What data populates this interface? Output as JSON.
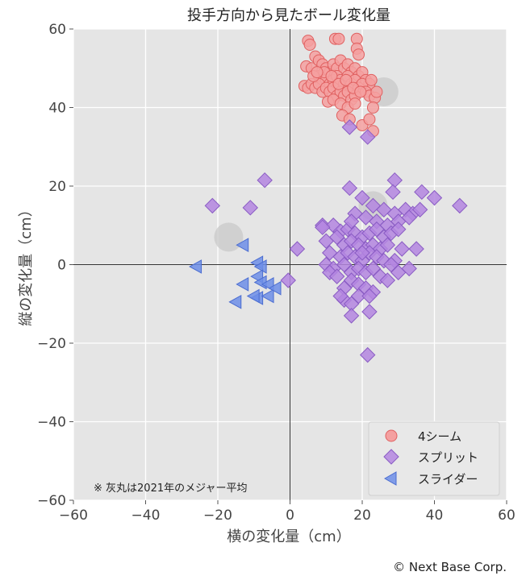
{
  "chart_data": {
    "type": "scatter",
    "title": "投手方向から見たボール変化量",
    "xlabel": "横の変化量（cm）",
    "ylabel": "縦の変化量（cm）",
    "xlim": [
      -60,
      60
    ],
    "ylim": [
      -60,
      60
    ],
    "xticks": [
      -60,
      -40,
      -20,
      0,
      20,
      40,
      60
    ],
    "yticks": [
      -60,
      -40,
      -20,
      0,
      20,
      40,
      60
    ],
    "xtick_labels": [
      "−60",
      "−40",
      "−20",
      "0",
      "20",
      "40",
      "60"
    ],
    "ytick_labels": [
      "−60",
      "−40",
      "−20",
      "0",
      "20",
      "40",
      "60"
    ],
    "grid": true,
    "legend_position": "bottom-right",
    "annotation": "※ 灰丸は2021年のメジャー平均",
    "series": [
      {
        "name": "4シーム",
        "marker": "circle",
        "color": "#f4a0a0",
        "edge_color": "#e06060",
        "points": [
          [
            5,
            57
          ],
          [
            5.5,
            56
          ],
          [
            7,
            53
          ],
          [
            12.5,
            57.5
          ],
          [
            13.5,
            57.5
          ],
          [
            18.5,
            57.5
          ],
          [
            18.5,
            55
          ],
          [
            19,
            53.5
          ],
          [
            4.5,
            50.5
          ],
          [
            6,
            50
          ],
          [
            8,
            52
          ],
          [
            9,
            51
          ],
          [
            10,
            50
          ],
          [
            11,
            49
          ],
          [
            12,
            51
          ],
          [
            13,
            50
          ],
          [
            14,
            52
          ],
          [
            15,
            50
          ],
          [
            16,
            51
          ],
          [
            17,
            49
          ],
          [
            18,
            50
          ],
          [
            19,
            48
          ],
          [
            20,
            49
          ],
          [
            21,
            47
          ],
          [
            22,
            46
          ],
          [
            8,
            48
          ],
          [
            9,
            47
          ],
          [
            10,
            47
          ],
          [
            11,
            46
          ],
          [
            12,
            47
          ],
          [
            13,
            48
          ],
          [
            14,
            47
          ],
          [
            15,
            46
          ],
          [
            16,
            48
          ],
          [
            17,
            46
          ],
          [
            18,
            47
          ],
          [
            19,
            45
          ],
          [
            20,
            46
          ],
          [
            21,
            44
          ],
          [
            22,
            43
          ],
          [
            4,
            45.5
          ],
          [
            5,
            45
          ],
          [
            6,
            46
          ],
          [
            7,
            45
          ],
          [
            8,
            46
          ],
          [
            9,
            44
          ],
          [
            10,
            45
          ],
          [
            11,
            44
          ],
          [
            12,
            45
          ],
          [
            13,
            43
          ],
          [
            14,
            44
          ],
          [
            15,
            43
          ],
          [
            16,
            44
          ],
          [
            17,
            42
          ],
          [
            18,
            43
          ],
          [
            23.5,
            42.5
          ],
          [
            10.5,
            41.5
          ],
          [
            12,
            42
          ],
          [
            14,
            41
          ],
          [
            16,
            40
          ],
          [
            18,
            41
          ],
          [
            23,
            40
          ],
          [
            14.5,
            38
          ],
          [
            16.5,
            37
          ],
          [
            20,
            35.5
          ],
          [
            22,
            37
          ],
          [
            23,
            34
          ],
          [
            9.5,
            49
          ],
          [
            11.5,
            48
          ],
          [
            13.5,
            46
          ],
          [
            15.5,
            47
          ],
          [
            17.5,
            45
          ],
          [
            19.5,
            44
          ],
          [
            6.5,
            48
          ],
          [
            7.5,
            49
          ],
          [
            24,
            44
          ],
          [
            22.5,
            47
          ]
        ]
      },
      {
        "name": "スプリット",
        "marker": "diamond",
        "color": "#b486e0",
        "edge_color": "#8a5cc4",
        "points": [
          [
            -21.5,
            15
          ],
          [
            -11,
            14.5
          ],
          [
            -7,
            21.5
          ],
          [
            16.5,
            35
          ],
          [
            21.5,
            32.5
          ],
          [
            16.5,
            19.5
          ],
          [
            29,
            21.5
          ],
          [
            28.5,
            18.5
          ],
          [
            36.5,
            18.5
          ],
          [
            40,
            17
          ],
          [
            47,
            15
          ],
          [
            20,
            17
          ],
          [
            23,
            15
          ],
          [
            26,
            14
          ],
          [
            29,
            13
          ],
          [
            32,
            14
          ],
          [
            34,
            13
          ],
          [
            36,
            14
          ],
          [
            18,
            13
          ],
          [
            21,
            12
          ],
          [
            24,
            11
          ],
          [
            27,
            10
          ],
          [
            30,
            11
          ],
          [
            33,
            12
          ],
          [
            9,
            10
          ],
          [
            12,
            10
          ],
          [
            14,
            8.5
          ],
          [
            16,
            9
          ],
          [
            18,
            8
          ],
          [
            20,
            7
          ],
          [
            22,
            8
          ],
          [
            24,
            9
          ],
          [
            26,
            7
          ],
          [
            28,
            8
          ],
          [
            30,
            9
          ],
          [
            10,
            6
          ],
          [
            13,
            7
          ],
          [
            15,
            5
          ],
          [
            17,
            6
          ],
          [
            19,
            5
          ],
          [
            21,
            4
          ],
          [
            23,
            5
          ],
          [
            25,
            4
          ],
          [
            27,
            5
          ],
          [
            31,
            4
          ],
          [
            35,
            4
          ],
          [
            2,
            4
          ],
          [
            11,
            3
          ],
          [
            14,
            2
          ],
          [
            16,
            3
          ],
          [
            18,
            2
          ],
          [
            20,
            1
          ],
          [
            22,
            3
          ],
          [
            24,
            2
          ],
          [
            26,
            1
          ],
          [
            29,
            1
          ],
          [
            10,
            0
          ],
          [
            12,
            -1
          ],
          [
            15,
            0
          ],
          [
            17,
            -2
          ],
          [
            19,
            -1
          ],
          [
            21,
            -2
          ],
          [
            23,
            -1
          ],
          [
            25,
            -3
          ],
          [
            27,
            -4
          ],
          [
            30,
            -2
          ],
          [
            33,
            -1
          ],
          [
            11,
            -2
          ],
          [
            13,
            -3
          ],
          [
            17,
            -4
          ],
          [
            19,
            -5
          ],
          [
            21,
            -6
          ],
          [
            15,
            -6
          ],
          [
            -0.5,
            -4
          ],
          [
            15,
            -9
          ],
          [
            17,
            -10
          ],
          [
            19,
            -8
          ],
          [
            23,
            -7
          ],
          [
            14,
            -8
          ],
          [
            17,
            -13
          ],
          [
            22,
            -12
          ],
          [
            22,
            -8
          ],
          [
            21.5,
            -23
          ],
          [
            28,
            0
          ],
          [
            9,
            9.5
          ],
          [
            17,
            11
          ],
          [
            20,
            3
          ]
        ]
      },
      {
        "name": "スライダー",
        "marker": "triangle-left",
        "color": "#6d8ee8",
        "edge_color": "#4a6cd0",
        "points": [
          [
            -26,
            -0.5
          ],
          [
            -13,
            5
          ],
          [
            -9,
            0.5
          ],
          [
            -8,
            -0.5
          ],
          [
            -9,
            -3
          ],
          [
            -13,
            -5
          ],
          [
            -8,
            -4.5
          ],
          [
            -6,
            -5
          ],
          [
            -9,
            -8.5
          ],
          [
            -6,
            -8
          ],
          [
            -10,
            -8
          ],
          [
            -15,
            -9.5
          ],
          [
            -4,
            -6
          ]
        ]
      },
      {
        "name": "",
        "marker": "circle-large",
        "color": "#c8c8c8",
        "points": [
          [
            26,
            44
          ],
          [
            -17,
            7
          ],
          [
            23,
            15
          ]
        ]
      }
    ]
  },
  "copyright": "© Next Base Corp."
}
